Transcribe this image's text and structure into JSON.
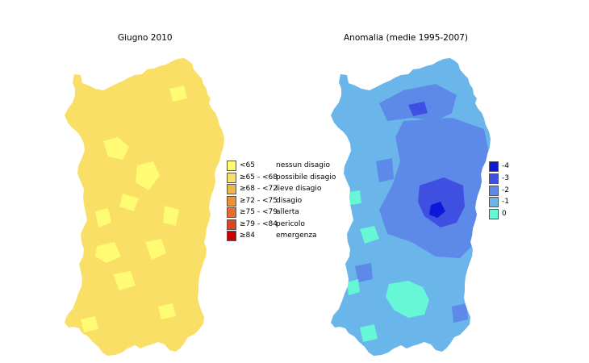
{
  "left_map": {
    "title": "Giugno 2010",
    "base_color": "#f9df66",
    "legend": [
      {
        "range": "<65",
        "label": "nessun disagio",
        "color": "#fffb73"
      },
      {
        "range": "≥65 - <68",
        "label": "possibile disagio",
        "color": "#f9df66"
      },
      {
        "range": "≥68 - <72",
        "label": "lieve disagio",
        "color": "#eeb44d"
      },
      {
        "range": "≥72 - <75",
        "label": "disagio",
        "color": "#e9923c"
      },
      {
        "range": "≥75 - <79",
        "label": "allerta",
        "color": "#e46e2e"
      },
      {
        "range": "≥79 - <84",
        "label": "pericolo",
        "color": "#dc4422"
      },
      {
        "range": "≥84",
        "label": "emergenza",
        "color": "#cc0000"
      }
    ]
  },
  "right_map": {
    "title": "Anomalia (medie 1995-2007)",
    "base_color": "#6ab6ea",
    "legend": [
      {
        "label": "-4",
        "color": "#0d16d9"
      },
      {
        "label": "-3",
        "color": "#3f4fe2"
      },
      {
        "label": "-2",
        "color": "#5d89e8"
      },
      {
        "label": "-1",
        "color": "#6ab6ea"
      },
      {
        "label": "0",
        "color": "#66f7d6"
      }
    ]
  }
}
